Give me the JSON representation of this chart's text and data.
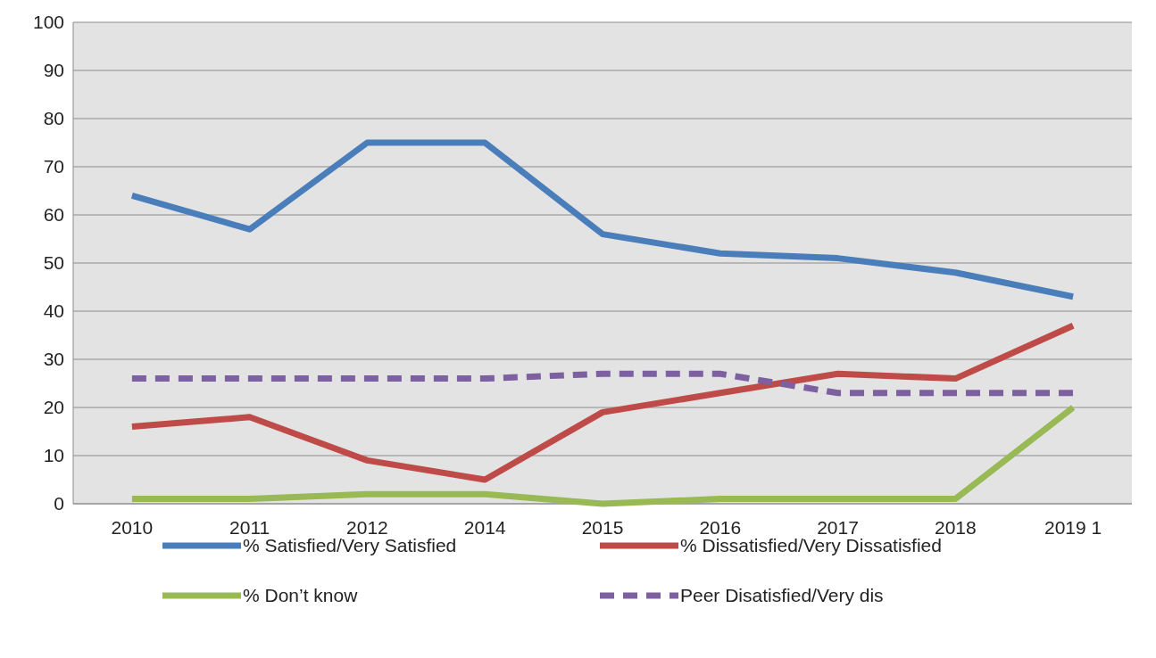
{
  "chart_data": {
    "type": "line",
    "categories": [
      "2010",
      "2011",
      "2012",
      "2014",
      "2015",
      "2016",
      "2017",
      "2018",
      "2019 1"
    ],
    "series": [
      {
        "name": "% Satisfied/Very Satisfied",
        "color": "#4a7ebb",
        "values": [
          64,
          57,
          75,
          75,
          56,
          52,
          51,
          48,
          43
        ]
      },
      {
        "name": "% Dissatisfied/Very Dissatisfied",
        "color": "#be4b48",
        "values": [
          16,
          18,
          9,
          5,
          19,
          23,
          27,
          26,
          37
        ]
      },
      {
        "name": "% Don’t know",
        "color": "#98b954",
        "values": [
          1,
          1,
          2,
          2,
          0,
          1,
          1,
          1,
          20
        ]
      },
      {
        "name": "Peer Disatisfied/Very dis",
        "color": "#7d60a0",
        "line_style": "dashed",
        "values": [
          26,
          26,
          26,
          26,
          27,
          27,
          23,
          23,
          23
        ]
      }
    ],
    "ylim": [
      0,
      100
    ],
    "yticks": [
      0,
      10,
      20,
      30,
      40,
      50,
      60,
      70,
      80,
      90,
      100
    ],
    "grid": "y",
    "legend": "bottom",
    "marker": "none",
    "line_style": "solid"
  }
}
